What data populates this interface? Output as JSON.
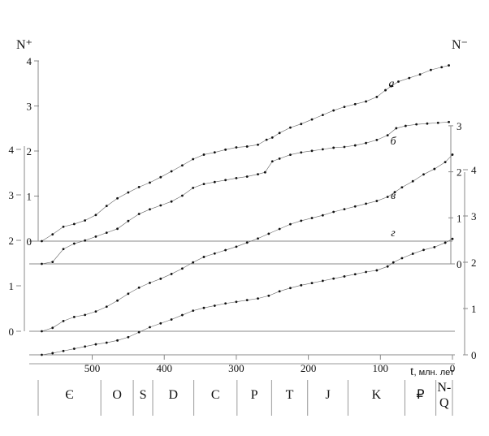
{
  "chart_data": {
    "type": "line",
    "title": "",
    "y_left_label": "N⁺",
    "y_right_label": "N⁻",
    "xlabel_symbol": "t",
    "xlabel_unit": ", млн. лет",
    "x_ticks": [
      500,
      400,
      300,
      200,
      100,
      0
    ],
    "xlim": [
      575,
      0
    ],
    "left_axis_a_ticks": [
      0,
      1,
      2,
      3,
      4
    ],
    "left_axis_main_ticks": [
      0,
      1,
      2,
      3,
      4
    ],
    "right_axis_b_ticks": [
      0,
      1,
      2,
      3
    ],
    "right_axis_main_ticks": [
      0,
      1,
      2,
      3,
      4
    ],
    "series": [
      {
        "name": "а",
        "x": [
          570,
          555,
          540,
          525,
          510,
          495,
          480,
          465,
          450,
          435,
          420,
          405,
          390,
          375,
          360,
          345,
          330,
          315,
          300,
          285,
          270,
          258,
          250,
          240,
          225,
          210,
          195,
          180,
          165,
          150,
          135,
          120,
          105,
          93,
          85,
          75,
          60,
          45,
          30,
          15,
          5
        ],
        "values": [
          0.0,
          0.15,
          0.32,
          0.38,
          0.46,
          0.58,
          0.78,
          0.95,
          1.08,
          1.2,
          1.3,
          1.42,
          1.55,
          1.68,
          1.82,
          1.92,
          1.97,
          2.03,
          2.08,
          2.1,
          2.14,
          2.25,
          2.3,
          2.4,
          2.52,
          2.6,
          2.7,
          2.8,
          2.9,
          2.98,
          3.04,
          3.1,
          3.2,
          3.35,
          3.44,
          3.54,
          3.62,
          3.7,
          3.8,
          3.86,
          3.9
        ]
      },
      {
        "name": "б",
        "x": [
          570,
          555,
          540,
          525,
          510,
          495,
          480,
          465,
          450,
          435,
          420,
          405,
          390,
          375,
          360,
          345,
          330,
          315,
          300,
          285,
          270,
          260,
          250,
          240,
          225,
          210,
          195,
          180,
          165,
          150,
          135,
          120,
          105,
          90,
          78,
          65,
          50,
          35,
          20,
          5
        ],
        "values": [
          0.0,
          0.05,
          0.38,
          0.52,
          0.6,
          0.7,
          0.8,
          0.9,
          1.1,
          1.28,
          1.4,
          1.5,
          1.6,
          1.75,
          1.95,
          2.05,
          2.1,
          2.15,
          2.2,
          2.24,
          2.3,
          2.35,
          2.63,
          2.7,
          2.8,
          2.86,
          2.9,
          2.94,
          2.98,
          3.0,
          3.04,
          3.1,
          3.18,
          3.3,
          3.48,
          3.54,
          3.58,
          3.6,
          3.62,
          3.64
        ]
      },
      {
        "name": "в",
        "x": [
          570,
          555,
          540,
          525,
          510,
          495,
          480,
          465,
          450,
          435,
          420,
          405,
          390,
          375,
          360,
          345,
          330,
          315,
          300,
          285,
          270,
          255,
          240,
          225,
          210,
          195,
          180,
          165,
          150,
          135,
          120,
          105,
          90,
          80,
          70,
          55,
          40,
          25,
          10,
          0
        ],
        "values": [
          0.0,
          0.1,
          0.3,
          0.42,
          0.48,
          0.58,
          0.72,
          0.9,
          1.1,
          1.28,
          1.42,
          1.54,
          1.68,
          1.84,
          2.02,
          2.18,
          2.28,
          2.38,
          2.48,
          2.6,
          2.72,
          2.86,
          3.0,
          3.14,
          3.24,
          3.32,
          3.4,
          3.5,
          3.58,
          3.66,
          3.74,
          3.82,
          3.94,
          4.08,
          4.22,
          4.4,
          4.6,
          4.76,
          4.96,
          5.18
        ]
      },
      {
        "name": "г",
        "x": [
          570,
          555,
          540,
          525,
          510,
          495,
          480,
          465,
          450,
          435,
          420,
          405,
          390,
          375,
          360,
          345,
          330,
          315,
          300,
          285,
          270,
          255,
          240,
          225,
          210,
          195,
          180,
          165,
          150,
          135,
          120,
          105,
          90,
          82,
          70,
          55,
          40,
          25,
          10,
          0
        ],
        "values": [
          0.0,
          0.06,
          0.14,
          0.22,
          0.3,
          0.38,
          0.44,
          0.52,
          0.64,
          0.82,
          1.0,
          1.14,
          1.28,
          1.44,
          1.6,
          1.7,
          1.78,
          1.86,
          1.92,
          1.98,
          2.04,
          2.14,
          2.3,
          2.42,
          2.52,
          2.6,
          2.68,
          2.76,
          2.84,
          2.92,
          3.0,
          3.06,
          3.2,
          3.35,
          3.5,
          3.66,
          3.8,
          3.9,
          4.06,
          4.2
        ]
      }
    ],
    "periods": [
      {
        "label": "Є",
        "start": 575,
        "end": 488
      },
      {
        "label": "O",
        "start": 488,
        "end": 443
      },
      {
        "label": "S",
        "start": 443,
        "end": 416
      },
      {
        "label": "D",
        "start": 416,
        "end": 359
      },
      {
        "label": "C",
        "start": 359,
        "end": 299
      },
      {
        "label": "P",
        "start": 299,
        "end": 251
      },
      {
        "label": "T",
        "start": 251,
        "end": 201
      },
      {
        "label": "J",
        "start": 201,
        "end": 145
      },
      {
        "label": "K",
        "start": 145,
        "end": 66
      },
      {
        "label": "₽",
        "start": 66,
        "end": 23
      },
      {
        "label": "N-Q",
        "start": 23,
        "end": 0
      }
    ],
    "grid": false,
    "legend": "none"
  }
}
